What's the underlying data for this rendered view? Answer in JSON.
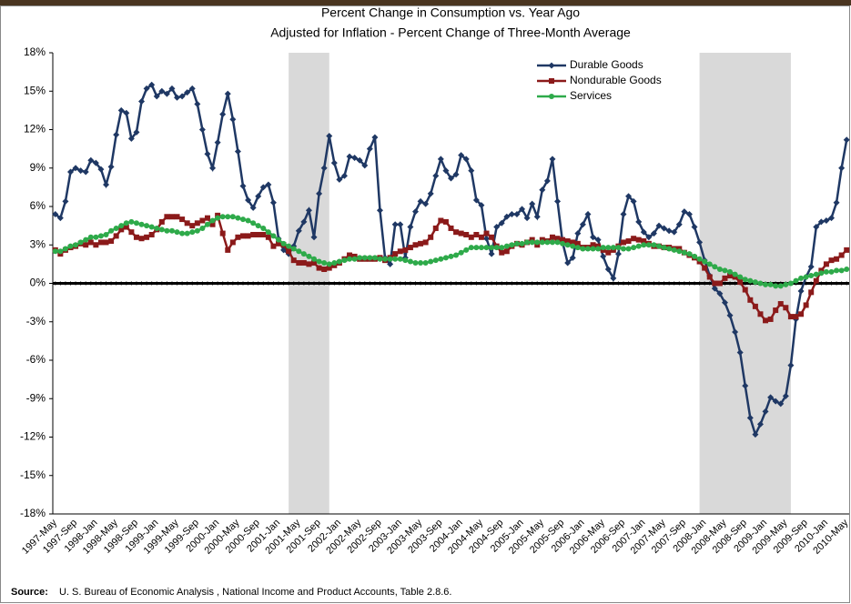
{
  "chart_data": {
    "type": "line",
    "title": "Percent Change in Consumption vs. Year Ago",
    "subtitle": "Adjusted for Inflation - Percent Change of Three-Month Average",
    "source_label": "Source:",
    "source": "U. S. Bureau of Economic Analysis , National Income and Product Accounts, Table 2.8.6.",
    "categories": [
      "1997-May",
      null,
      null,
      null,
      "1997-Sep",
      null,
      null,
      null,
      "1998-Jan",
      null,
      null,
      null,
      "1998-May",
      null,
      null,
      null,
      "1998-Sep",
      null,
      null,
      null,
      "1999-Jan",
      null,
      null,
      null,
      "1999-May",
      null,
      null,
      null,
      "1999-Sep",
      null,
      null,
      null,
      "2000-Jan",
      null,
      null,
      null,
      "2000-May",
      null,
      null,
      null,
      "2000-Sep",
      null,
      null,
      null,
      "2001-Jan",
      null,
      null,
      null,
      "2001-May",
      null,
      null,
      null,
      "2001-Sep",
      null,
      null,
      null,
      "2002-Jan",
      null,
      null,
      null,
      "2002-May",
      null,
      null,
      null,
      "2002-Sep",
      null,
      null,
      null,
      "2003-Jan",
      null,
      null,
      null,
      "2003-May",
      null,
      null,
      null,
      "2003-Sep",
      null,
      null,
      null,
      "2004-Jan",
      null,
      null,
      null,
      "2004-May",
      null,
      null,
      null,
      "2004-Sep",
      null,
      null,
      null,
      "2005-Jan",
      null,
      null,
      null,
      "2005-May",
      null,
      null,
      null,
      "2005-Sep",
      null,
      null,
      null,
      "2006-Jan",
      null,
      null,
      null,
      "2006-May",
      null,
      null,
      null,
      "2006-Sep",
      null,
      null,
      null,
      "2007-Jan",
      null,
      null,
      null,
      "2007-May",
      null,
      null,
      null,
      "2007-Sep",
      null,
      null,
      null,
      "2008-Jan",
      null,
      null,
      null,
      "2008-May",
      null,
      null,
      null,
      "2008-Sep",
      null,
      null,
      null,
      "2009-Jan",
      null,
      null,
      null,
      "2009-May",
      null,
      null,
      null,
      "2009-Sep",
      null,
      null,
      null,
      "2010-Jan",
      null,
      null,
      null,
      "2010-May"
    ],
    "series": [
      {
        "name": "Durable Goods",
        "color": "#1f3864",
        "marker": "diamond",
        "values": [
          5.4,
          5.1,
          6.4,
          8.7,
          9.0,
          8.8,
          8.7,
          9.6,
          9.4,
          8.9,
          7.7,
          9.1,
          11.6,
          13.5,
          13.3,
          11.3,
          11.8,
          14.2,
          15.2,
          15.5,
          14.6,
          15.0,
          14.8,
          15.2,
          14.5,
          14.6,
          14.9,
          15.2,
          14.0,
          12.0,
          10.1,
          9.0,
          11.0,
          13.2,
          14.8,
          12.8,
          10.3,
          7.6,
          6.5,
          5.9,
          6.8,
          7.5,
          7.7,
          6.3,
          3.5,
          2.6,
          2.3,
          2.9,
          4.1,
          4.8,
          5.7,
          3.6,
          7.0,
          9.0,
          11.5,
          9.4,
          8.1,
          8.4,
          9.9,
          9.8,
          9.6,
          9.2,
          10.5,
          11.4,
          5.7,
          2.0,
          1.5,
          4.6,
          4.6,
          2.0,
          4.4,
          5.6,
          6.4,
          6.2,
          7.0,
          8.4,
          9.7,
          8.8,
          8.2,
          8.5,
          10.0,
          9.7,
          8.8,
          6.5,
          6.1,
          3.5,
          2.3,
          4.4,
          4.7,
          5.2,
          5.4,
          5.4,
          5.8,
          5.1,
          6.2,
          5.2,
          7.3,
          8.0,
          9.7,
          6.4,
          3.2,
          1.6,
          2.0,
          3.9,
          4.6,
          5.4,
          3.6,
          3.4,
          2.1,
          1.1,
          0.4,
          2.3,
          5.4,
          6.8,
          6.4,
          4.8,
          4.0,
          3.6,
          3.9,
          4.5,
          4.3,
          4.1,
          4.0,
          4.6,
          5.6,
          5.4,
          4.4,
          3.2,
          1.8,
          0.6,
          -0.4,
          -0.8,
          -1.5,
          -2.5,
          -3.8,
          -5.4,
          -8.0,
          -10.5,
          -11.8,
          -11.0,
          -10.0,
          -8.9,
          -9.2,
          -9.4,
          -8.8,
          -6.4,
          -2.8,
          -0.6,
          0.5,
          1.3,
          4.4,
          4.8,
          4.9,
          5.1,
          6.3,
          9.0,
          11.2
        ]
      },
      {
        "name": "Nondurable Goods",
        "color": "#8b1a1a",
        "marker": "square",
        "values": [
          2.6,
          2.3,
          2.6,
          2.8,
          2.9,
          3.1,
          3.0,
          3.2,
          3.0,
          3.2,
          3.2,
          3.3,
          3.7,
          4.2,
          4.4,
          4.0,
          3.6,
          3.5,
          3.6,
          3.8,
          4.2,
          4.8,
          5.2,
          5.2,
          5.2,
          5.0,
          4.7,
          4.5,
          4.7,
          4.9,
          5.1,
          4.6,
          5.3,
          3.9,
          2.6,
          3.2,
          3.6,
          3.7,
          3.7,
          3.8,
          3.8,
          3.8,
          3.6,
          2.9,
          3.1,
          3.0,
          2.5,
          1.8,
          1.6,
          1.6,
          1.5,
          1.6,
          1.2,
          1.1,
          1.2,
          1.4,
          1.6,
          1.9,
          2.2,
          2.1,
          1.9,
          1.9,
          1.9,
          1.9,
          2.0,
          1.8,
          2.0,
          2.3,
          2.5,
          2.6,
          2.8,
          3.0,
          3.1,
          3.2,
          3.6,
          4.3,
          4.9,
          4.8,
          4.3,
          4.0,
          3.9,
          3.8,
          3.6,
          3.8,
          3.6,
          3.9,
          3.6,
          2.9,
          2.4,
          2.5,
          2.9,
          3.1,
          3.0,
          3.2,
          3.4,
          3.0,
          3.4,
          3.3,
          3.6,
          3.5,
          3.4,
          3.3,
          3.2,
          3.1,
          2.8,
          2.8,
          3.0,
          2.9,
          2.6,
          2.4,
          2.6,
          2.9,
          3.2,
          3.3,
          3.5,
          3.4,
          3.3,
          3.1,
          2.9,
          2.9,
          2.8,
          2.8,
          2.7,
          2.7,
          2.4,
          2.2,
          2.0,
          1.7,
          1.2,
          0.5,
          0.0,
          0.0,
          0.4,
          0.6,
          0.5,
          0.1,
          -0.5,
          -1.3,
          -1.8,
          -2.4,
          -2.9,
          -2.8,
          -2.1,
          -1.6,
          -1.9,
          -2.6,
          -2.6,
          -2.4,
          -1.7,
          -0.7,
          0.2,
          1.0,
          1.5,
          1.8,
          1.9,
          2.2,
          2.6
        ]
      },
      {
        "name": "Services",
        "color": "#2eaa4a",
        "marker": "circle",
        "values": [
          2.5,
          2.5,
          2.7,
          2.9,
          3.0,
          3.2,
          3.4,
          3.6,
          3.6,
          3.7,
          3.8,
          4.1,
          4.3,
          4.5,
          4.7,
          4.8,
          4.7,
          4.6,
          4.5,
          4.4,
          4.3,
          4.2,
          4.1,
          4.1,
          4.0,
          3.9,
          3.9,
          4.0,
          4.1,
          4.3,
          4.6,
          4.9,
          5.1,
          5.2,
          5.2,
          5.2,
          5.1,
          5.0,
          4.9,
          4.7,
          4.5,
          4.3,
          4.0,
          3.7,
          3.4,
          3.1,
          2.9,
          2.7,
          2.5,
          2.3,
          2.1,
          1.9,
          1.7,
          1.6,
          1.5,
          1.6,
          1.7,
          1.8,
          1.9,
          1.9,
          2.0,
          2.0,
          2.0,
          2.0,
          1.9,
          1.9,
          1.9,
          1.9,
          1.9,
          1.8,
          1.7,
          1.6,
          1.6,
          1.6,
          1.7,
          1.8,
          1.9,
          2.0,
          2.1,
          2.2,
          2.4,
          2.6,
          2.8,
          2.8,
          2.8,
          2.8,
          2.8,
          2.8,
          2.8,
          2.9,
          3.0,
          3.1,
          3.1,
          3.2,
          3.2,
          3.2,
          3.2,
          3.2,
          3.2,
          3.2,
          3.1,
          3.0,
          2.9,
          2.8,
          2.7,
          2.7,
          2.7,
          2.7,
          2.8,
          2.8,
          2.8,
          2.8,
          2.7,
          2.7,
          2.8,
          2.9,
          3.0,
          3.0,
          3.0,
          2.9,
          2.8,
          2.7,
          2.6,
          2.5,
          2.4,
          2.3,
          2.1,
          1.9,
          1.7,
          1.5,
          1.3,
          1.1,
          1.0,
          0.9,
          0.7,
          0.5,
          0.3,
          0.2,
          0.1,
          0.0,
          -0.1,
          -0.1,
          -0.2,
          -0.2,
          -0.1,
          0.0,
          0.2,
          0.4,
          0.5,
          0.6,
          0.7,
          0.8,
          0.9,
          0.9,
          1.0,
          1.0,
          1.1
        ]
      }
    ],
    "shaded_periods": [
      [
        46,
        54
      ],
      [
        127,
        145
      ]
    ],
    "shade_color": "#d9d9d9",
    "ylim": [
      -18,
      18
    ],
    "yticks": [
      {
        "value": -18,
        "label": "-18%"
      },
      {
        "value": -15,
        "label": "-15%"
      },
      {
        "value": -12,
        "label": "-12%"
      },
      {
        "value": -9,
        "label": "-9%"
      },
      {
        "value": -6,
        "label": "-6%"
      },
      {
        "value": -3,
        "label": "-3%"
      },
      {
        "value": 0,
        "label": "0%"
      },
      {
        "value": 3,
        "label": "3%"
      },
      {
        "value": 6,
        "label": "6%"
      },
      {
        "value": 9,
        "label": "9%"
      },
      {
        "value": 12,
        "label": "12%"
      },
      {
        "value": 15,
        "label": "15%"
      },
      {
        "value": 18,
        "label": "18%"
      }
    ],
    "grid": false,
    "legend": "top-right"
  }
}
